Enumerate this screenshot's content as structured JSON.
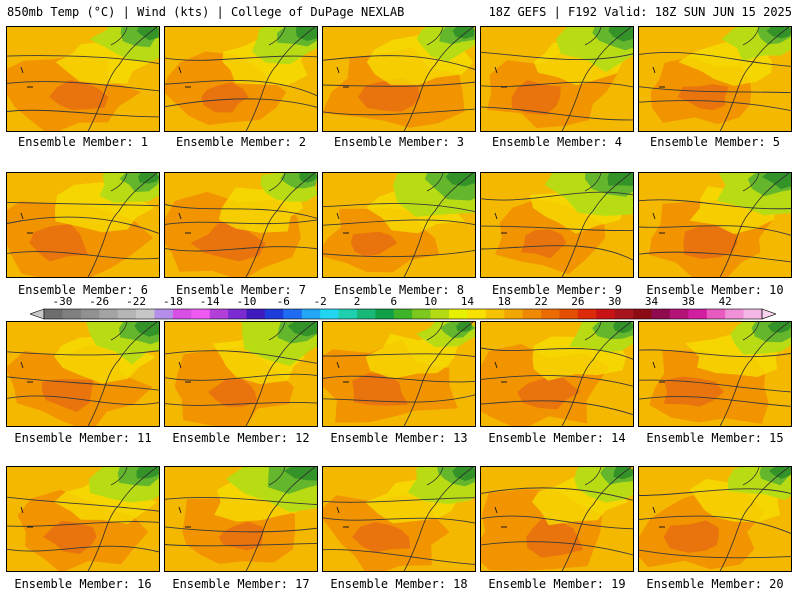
{
  "header": {
    "left": "850mb Temp (°C) | Wind (kts) | College of DuPage NEXLAB",
    "right": "18Z GEFS | F192 Valid: 18Z SUN JUN 15 2025"
  },
  "label_prefix": "Ensemble Member: ",
  "members": [
    {
      "label": "Ensemble Member: 1",
      "warm": 0.55,
      "green": 0.35
    },
    {
      "label": "Ensemble Member: 2",
      "warm": 0.45,
      "green": 0.45
    },
    {
      "label": "Ensemble Member: 3",
      "warm": 0.7,
      "green": 0.3
    },
    {
      "label": "Ensemble Member: 4",
      "warm": 0.55,
      "green": 0.6
    },
    {
      "label": "Ensemble Member: 5",
      "warm": 0.4,
      "green": 0.35
    },
    {
      "label": "Ensemble Member: 6",
      "warm": 0.8,
      "green": 0.3
    },
    {
      "label": "Ensemble Member: 7",
      "warm": 0.8,
      "green": 0.25
    },
    {
      "label": "Ensemble Member: 8",
      "warm": 0.35,
      "green": 0.7
    },
    {
      "label": "Ensemble Member: 9",
      "warm": 0.4,
      "green": 0.7
    },
    {
      "label": "Ensemble Member: 10",
      "warm": 0.6,
      "green": 0.6
    },
    {
      "label": "Ensemble Member: 11",
      "warm": 0.7,
      "green": 0.55
    },
    {
      "label": "Ensemble Member: 12",
      "warm": 0.5,
      "green": 0.55
    },
    {
      "label": "Ensemble Member: 13",
      "warm": 0.75,
      "green": 0.15
    },
    {
      "label": "Ensemble Member: 14",
      "warm": 0.65,
      "green": 0.35
    },
    {
      "label": "Ensemble Member: 15",
      "warm": 0.7,
      "green": 0.35
    },
    {
      "label": "Ensemble Member: 16",
      "warm": 0.5,
      "green": 0.45
    },
    {
      "label": "Ensemble Member: 17",
      "warm": 0.45,
      "green": 0.75
    },
    {
      "label": "Ensemble Member: 18",
      "warm": 0.65,
      "green": 0.4
    },
    {
      "label": "Ensemble Member: 19",
      "warm": 0.75,
      "green": 0.3
    },
    {
      "label": "Ensemble Member: 20",
      "warm": 0.7,
      "green": 0.3
    }
  ],
  "colorbar": {
    "labels": [
      "-30",
      "-26",
      "-22",
      "-18",
      "-14",
      "-10",
      "-6",
      "-2",
      "2",
      "6",
      "10",
      "14",
      "18",
      "22",
      "26",
      "30",
      "34",
      "38",
      "42"
    ],
    "colors": [
      "#6e6e6e",
      "#7f7f7f",
      "#919191",
      "#a3a3a3",
      "#b5b5b5",
      "#c7c7c7",
      "#b48ee8",
      "#d84fe6",
      "#f05af2",
      "#b23fd9",
      "#7a2bd1",
      "#3f1bbf",
      "#1e3cd9",
      "#1f6cf2",
      "#22a6f5",
      "#22d6f2",
      "#1fd0b0",
      "#18b878",
      "#10a048",
      "#3fb428",
      "#7cc81e",
      "#b4dc14",
      "#e6f000",
      "#f8e000",
      "#f5c300",
      "#f2a600",
      "#ef8a00",
      "#ea6c00",
      "#e34e00",
      "#dc2a0a",
      "#c81414",
      "#a8141e",
      "#8c0a14",
      "#900a50",
      "#b41478",
      "#d21ea0",
      "#e85ac0",
      "#f090d6",
      "#f4b8e6"
    ]
  },
  "colors": {
    "orange": "#f28f00",
    "deep_orange": "#e86e10",
    "amber": "#f5b800",
    "yellow": "#f5e000",
    "lime": "#b4dc14",
    "green": "#5fb42d",
    "dark_green": "#2f8f28",
    "contour": "#3a3a3a"
  }
}
